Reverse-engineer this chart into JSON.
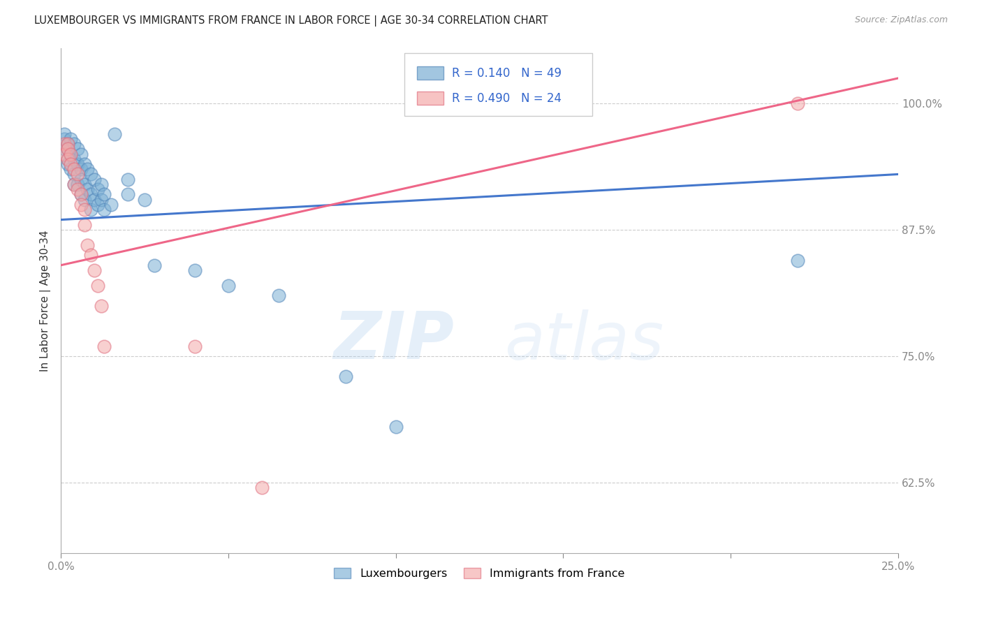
{
  "title": "LUXEMBOURGER VS IMMIGRANTS FROM FRANCE IN LABOR FORCE | AGE 30-34 CORRELATION CHART",
  "source": "Source: ZipAtlas.com",
  "xlim": [
    0.0,
    0.25
  ],
  "ylim": [
    0.555,
    1.055
  ],
  "xticks": [
    0.0,
    0.05,
    0.1,
    0.15,
    0.2,
    0.25
  ],
  "xticklabels": [
    "0.0%",
    "",
    "",
    "",
    "",
    "25.0%"
  ],
  "yticks": [
    0.625,
    0.75,
    0.875,
    1.0
  ],
  "yticklabels": [
    "62.5%",
    "75.0%",
    "87.5%",
    "100.0%"
  ],
  "ylabel": "In Labor Force | Age 30-34",
  "legend_labels": [
    "Luxembourgers",
    "Immigrants from France"
  ],
  "blue_fill": "#7BAFD4",
  "blue_edge": "#5588BB",
  "pink_fill": "#F4AAAA",
  "pink_edge": "#E07080",
  "blue_line": "#4477CC",
  "pink_line": "#EE6688",
  "r_blue": 0.14,
  "n_blue": 49,
  "r_pink": 0.49,
  "n_pink": 24,
  "blue_scatter": [
    [
      0.001,
      0.955
    ],
    [
      0.001,
      0.965
    ],
    [
      0.001,
      0.97
    ],
    [
      0.002,
      0.96
    ],
    [
      0.002,
      0.955
    ],
    [
      0.002,
      0.945
    ],
    [
      0.002,
      0.94
    ],
    [
      0.003,
      0.965
    ],
    [
      0.003,
      0.95
    ],
    [
      0.003,
      0.935
    ],
    [
      0.004,
      0.96
    ],
    [
      0.004,
      0.945
    ],
    [
      0.004,
      0.93
    ],
    [
      0.004,
      0.92
    ],
    [
      0.005,
      0.955
    ],
    [
      0.005,
      0.94
    ],
    [
      0.005,
      0.92
    ],
    [
      0.006,
      0.95
    ],
    [
      0.006,
      0.935
    ],
    [
      0.006,
      0.925
    ],
    [
      0.006,
      0.91
    ],
    [
      0.007,
      0.94
    ],
    [
      0.007,
      0.92
    ],
    [
      0.007,
      0.905
    ],
    [
      0.008,
      0.935
    ],
    [
      0.008,
      0.915
    ],
    [
      0.009,
      0.93
    ],
    [
      0.009,
      0.91
    ],
    [
      0.009,
      0.895
    ],
    [
      0.01,
      0.925
    ],
    [
      0.01,
      0.905
    ],
    [
      0.011,
      0.915
    ],
    [
      0.011,
      0.9
    ],
    [
      0.012,
      0.92
    ],
    [
      0.012,
      0.905
    ],
    [
      0.013,
      0.91
    ],
    [
      0.013,
      0.895
    ],
    [
      0.015,
      0.9
    ],
    [
      0.016,
      0.97
    ],
    [
      0.02,
      0.925
    ],
    [
      0.02,
      0.91
    ],
    [
      0.025,
      0.905
    ],
    [
      0.028,
      0.84
    ],
    [
      0.04,
      0.835
    ],
    [
      0.05,
      0.82
    ],
    [
      0.065,
      0.81
    ],
    [
      0.085,
      0.73
    ],
    [
      0.1,
      0.68
    ],
    [
      0.22,
      0.845
    ]
  ],
  "pink_scatter": [
    [
      0.001,
      0.96
    ],
    [
      0.001,
      0.95
    ],
    [
      0.002,
      0.96
    ],
    [
      0.002,
      0.955
    ],
    [
      0.002,
      0.945
    ],
    [
      0.003,
      0.95
    ],
    [
      0.003,
      0.94
    ],
    [
      0.004,
      0.935
    ],
    [
      0.004,
      0.92
    ],
    [
      0.005,
      0.93
    ],
    [
      0.005,
      0.915
    ],
    [
      0.006,
      0.91
    ],
    [
      0.006,
      0.9
    ],
    [
      0.007,
      0.895
    ],
    [
      0.007,
      0.88
    ],
    [
      0.008,
      0.86
    ],
    [
      0.009,
      0.85
    ],
    [
      0.01,
      0.835
    ],
    [
      0.011,
      0.82
    ],
    [
      0.012,
      0.8
    ],
    [
      0.013,
      0.76
    ],
    [
      0.04,
      0.76
    ],
    [
      0.06,
      0.62
    ],
    [
      0.22,
      1.0
    ]
  ],
  "blue_regline_x": [
    0.0,
    0.25
  ],
  "blue_regline_y": [
    0.885,
    0.93
  ],
  "pink_regline_x": [
    0.0,
    0.25
  ],
  "pink_regline_y": [
    0.84,
    1.025
  ],
  "watermark_zip": "ZIP",
  "watermark_atlas": "atlas",
  "grid_color": "#cccccc",
  "axis_color": "#aaaaaa",
  "tick_color": "#3366CC",
  "title_color": "#222222",
  "source_color": "#999999",
  "ylabel_color": "#333333"
}
